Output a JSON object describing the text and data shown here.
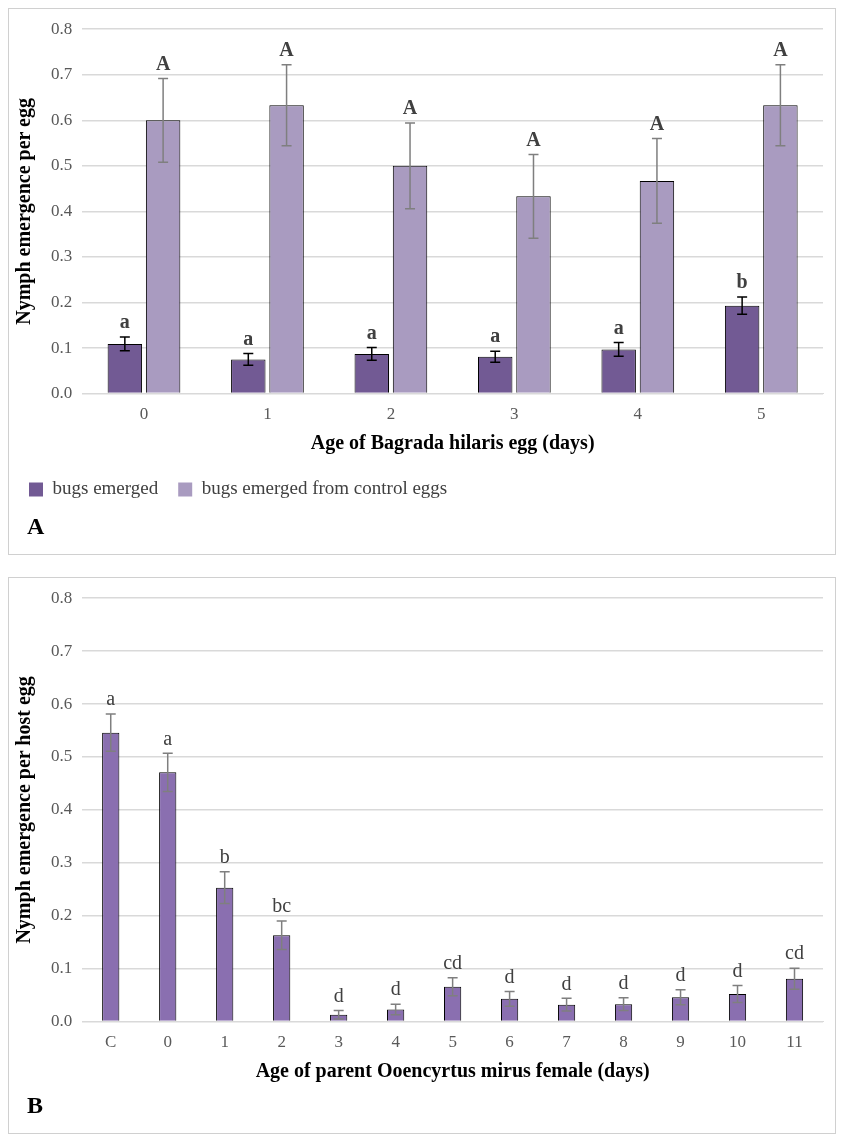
{
  "chart_data": [
    {
      "type": "bar",
      "xlabel": "Age of Bagrada hilaris egg (days)",
      "ylabel": "Nymph emergence per egg",
      "categories": [
        "0",
        "1",
        "2",
        "3",
        "4",
        "5"
      ],
      "ylim": [
        0,
        0.8
      ],
      "yticks": [
        {
          "value": 0,
          "label": "0.0"
        },
        0.1,
        0.2,
        0.3,
        0.4,
        0.5,
        0.6,
        0.7,
        0.8
      ],
      "grid": "y",
      "legend": "bottom",
      "series": [
        {
          "name": "bugs emerged",
          "color": "#725a94",
          "values": [
            0.109,
            0.075,
            0.087,
            0.081,
            0.097,
            0.193
          ],
          "errors": [
            0.015,
            0.013,
            0.014,
            0.012,
            0.015,
            0.019
          ]
        },
        {
          "name": "bugs emerged from control eggs",
          "color": "#a99bc0",
          "values": [
            0.6,
            0.633,
            0.5,
            0.433,
            0.467,
            0.633
          ],
          "errors": [
            0.092,
            0.089,
            0.094,
            0.092,
            0.093,
            0.089
          ]
        }
      ],
      "annotations": [
        {
          "text": "a",
          "x": "0",
          "y": 0.109
        },
        {
          "text": "A",
          "x": "0",
          "y": 0.6
        },
        {
          "text": "a",
          "x": "1",
          "y": 0.075
        },
        {
          "text": "A",
          "x": "1",
          "y": 0.633
        },
        {
          "text": "a",
          "x": "2",
          "y": 0.087
        },
        {
          "text": "A",
          "x": "2",
          "y": 0.5
        },
        {
          "text": "a",
          "x": "3",
          "y": 0.081
        },
        {
          "text": "A",
          "x": "3",
          "y": 0.433
        },
        {
          "text": "a",
          "x": "4",
          "y": 0.097
        },
        {
          "text": "A",
          "x": "4",
          "y": 0.467
        },
        {
          "text": "b",
          "x": "5",
          "y": 0.193
        },
        {
          "text": "A",
          "x": "5",
          "y": 0.633
        },
        "A"
      ]
    },
    {
      "type": "bar",
      "xlabel": "Age of parent Ooencyrtus mirus female (days)",
      "ylabel": "Nymph emergence per host egg",
      "categories": [
        "C",
        "0",
        "1",
        "2",
        "3",
        "4",
        "5",
        "6",
        "7",
        "8",
        "9",
        "10",
        "11"
      ],
      "ylim": [
        0,
        0.8
      ],
      "yticks": [
        {
          "value": 0,
          "label": "0.0"
        },
        0.1,
        0.2,
        0.3,
        0.4,
        0.5,
        0.6,
        0.7,
        0.8
      ],
      "grid": "y",
      "series": [
        {
          "color": "#8a6fb0",
          "values": [
            0.546,
            0.471,
            0.253,
            0.163,
            0.013,
            0.023,
            0.066,
            0.043,
            0.032,
            0.033,
            0.046,
            0.052,
            0.081
          ],
          "errors": [
            0.035,
            0.036,
            0.03,
            0.027,
            0.008,
            0.01,
            0.017,
            0.014,
            0.012,
            0.012,
            0.014,
            0.016,
            0.02
          ]
        }
      ],
      "annotations": [
        {
          "text": "a",
          "x": "C",
          "y": 0.546
        },
        {
          "text": "a",
          "x": "0",
          "y": 0.471
        },
        {
          "text": "b",
          "x": "1",
          "y": 0.253
        },
        {
          "text": "bc",
          "x": "2",
          "y": 0.163
        },
        {
          "text": "d",
          "x": "3",
          "y": 0.013
        },
        {
          "text": "d",
          "x": "4",
          "y": 0.023
        },
        {
          "text": "cd",
          "x": "5",
          "y": 0.066
        },
        {
          "text": "d",
          "x": "6",
          "y": 0.043
        },
        {
          "text": "d",
          "x": "7",
          "y": 0.032
        },
        {
          "text": "d",
          "x": "8",
          "y": 0.033
        },
        {
          "text": "d",
          "x": "9",
          "y": 0.046
        },
        {
          "text": "d",
          "x": "10",
          "y": 0.052
        },
        {
          "text": "cd",
          "x": "11",
          "y": 0.081
        },
        "B"
      ]
    }
  ]
}
